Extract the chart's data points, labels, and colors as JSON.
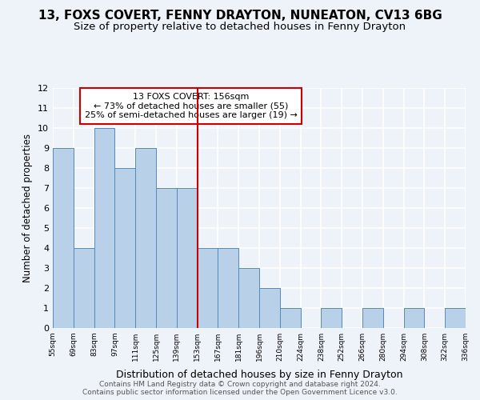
{
  "title": "13, FOXS COVERT, FENNY DRAYTON, NUNEATON, CV13 6BG",
  "subtitle": "Size of property relative to detached houses in Fenny Drayton",
  "xlabel": "Distribution of detached houses by size in Fenny Drayton",
  "ylabel": "Number of detached properties",
  "bin_labels": [
    "55sqm",
    "69sqm",
    "83sqm",
    "97sqm",
    "111sqm",
    "125sqm",
    "139sqm",
    "153sqm",
    "167sqm",
    "181sqm",
    "196sqm",
    "210sqm",
    "224sqm",
    "238sqm",
    "252sqm",
    "266sqm",
    "280sqm",
    "294sqm",
    "308sqm",
    "322sqm",
    "336sqm"
  ],
  "bar_heights": [
    9,
    4,
    10,
    8,
    9,
    7,
    7,
    4,
    4,
    3,
    2,
    1,
    0,
    1,
    0,
    1,
    0,
    1,
    0,
    1
  ],
  "bar_color": "#b8d0e8",
  "bar_edge_color": "#5588bb",
  "vline_x": 7,
  "vline_color": "#cc0000",
  "ylim": [
    0,
    12
  ],
  "yticks": [
    0,
    1,
    2,
    3,
    4,
    5,
    6,
    7,
    8,
    9,
    10,
    11,
    12
  ],
  "annotation_box_title": "13 FOXS COVERT: 156sqm",
  "annotation_line1": "← 73% of detached houses are smaller (55)",
  "annotation_line2": "25% of semi-detached houses are larger (19) →",
  "annotation_box_color": "#ffffff",
  "annotation_box_edge_color": "#cc0000",
  "footer_line1": "Contains HM Land Registry data © Crown copyright and database right 2024.",
  "footer_line2": "Contains public sector information licensed under the Open Government Licence v3.0.",
  "background_color": "#eef2f9",
  "grid_color": "#ffffff",
  "title_fontsize": 11,
  "subtitle_fontsize": 9.5,
  "xlabel_fontsize": 9,
  "ylabel_fontsize": 8.5,
  "tick_fontsize": 8,
  "footer_fontsize": 6.5
}
